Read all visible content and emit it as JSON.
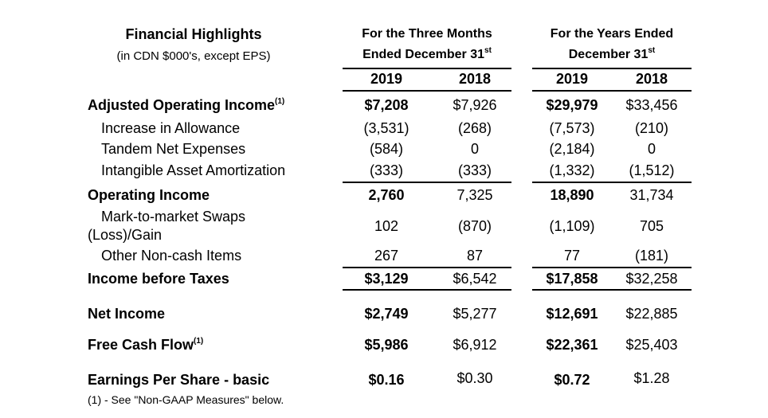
{
  "table": {
    "title": "Financial Highlights",
    "subtitle": "(in CDN $000's, except EPS)",
    "group1": {
      "line1": "For the Three Months",
      "line2": "Ended December 31",
      "sup": "st"
    },
    "group2": {
      "line1": "For the Years Ended",
      "line2": "December 31",
      "sup": "st"
    },
    "years": [
      "2019",
      "2018",
      "2019",
      "2018"
    ],
    "rows": [
      {
        "label": "Adjusted Operating Income",
        "sup": "(1)",
        "values": [
          "$7,208",
          "$7,926",
          "$29,979",
          "$33,456"
        ]
      },
      {
        "label": "Increase in Allowance",
        "values": [
          "(3,531)",
          "(268)",
          "(7,573)",
          "(210)"
        ]
      },
      {
        "label": "Tandem Net Expenses",
        "values": [
          "(584)",
          "0",
          "(2,184)",
          "0"
        ]
      },
      {
        "label": "Intangible Asset Amortization",
        "values": [
          "(333)",
          "(333)",
          "(1,332)",
          "(1,512)"
        ]
      },
      {
        "label": "Operating Income",
        "values": [
          "2,760",
          "7,325",
          "18,890",
          "31,734"
        ]
      },
      {
        "label_line1": "Mark-to-market Swaps",
        "label_line2": "(Loss)/Gain",
        "values": [
          "102",
          "(870)",
          "(1,109)",
          "705"
        ]
      },
      {
        "label": "Other Non-cash Items",
        "values": [
          "267",
          "87",
          "77",
          "(181)"
        ]
      },
      {
        "label": "Income before Taxes",
        "values": [
          "$3,129",
          "$6,542",
          "$17,858",
          "$32,258"
        ]
      },
      {
        "label": "Net Income",
        "values": [
          "$2,749",
          "$5,277",
          "$12,691",
          "$22,885"
        ]
      },
      {
        "label": "Free Cash Flow",
        "sup": "(1)",
        "values": [
          "$5,986",
          "$6,912",
          "$22,361",
          "$25,403"
        ]
      },
      {
        "label": "Earnings Per Share - basic",
        "values": [
          "$0.16",
          "$0.30",
          "$0.72",
          "$1.28"
        ]
      }
    ],
    "footnote": "(1) - See \"Non-GAAP Measures\" below."
  }
}
